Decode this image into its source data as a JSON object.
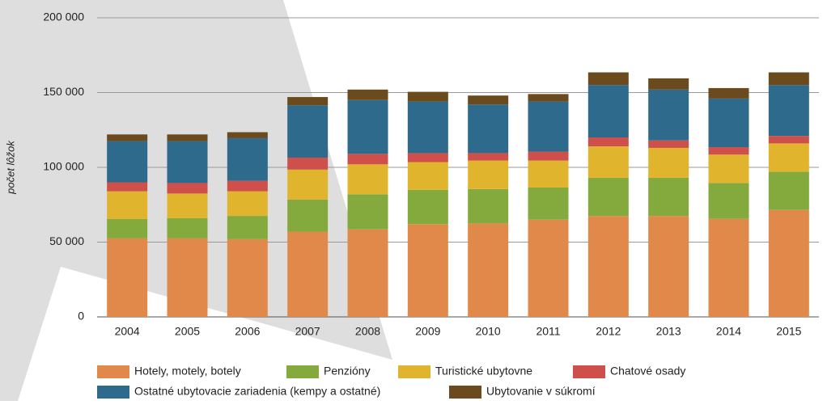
{
  "chart_data": {
    "type": "stacked_bar",
    "ylabel": "počet lôžok",
    "categories": [
      "2004",
      "2005",
      "2006",
      "2007",
      "2008",
      "2009",
      "2010",
      "2011",
      "2012",
      "2013",
      "2014",
      "2015"
    ],
    "series": [
      {
        "name": "Hotely, motely, botely",
        "color": "#e0894a",
        "values": [
          52500,
          52500,
          52000,
          57000,
          58500,
          62000,
          62500,
          65000,
          67500,
          67500,
          65500,
          71500
        ]
      },
      {
        "name": "Penzióny",
        "color": "#84aa3e",
        "values": [
          13000,
          13500,
          15500,
          21500,
          23500,
          23000,
          23000,
          21500,
          25500,
          25500,
          24000,
          25500
        ]
      },
      {
        "name": "Turistické ubytovne",
        "color": "#e1b42e",
        "values": [
          18500,
          16500,
          16500,
          20000,
          20000,
          18500,
          19000,
          18000,
          21000,
          20000,
          19000,
          19000
        ]
      },
      {
        "name": "Chatové osady",
        "color": "#cf4f4a",
        "values": [
          6000,
          7000,
          7000,
          8000,
          7000,
          6000,
          5000,
          6000,
          6000,
          5000,
          5000,
          5000
        ]
      },
      {
        "name": "Ostatné ubytovacie zariadenia (kempy a ostatné)",
        "color": "#2d6a8c",
        "values": [
          27500,
          28000,
          28500,
          35000,
          36000,
          34500,
          32500,
          33500,
          35000,
          34000,
          32500,
          34000
        ]
      },
      {
        "name": "Ubytovanie v súkromí",
        "color": "#6b4a1e",
        "values": [
          4500,
          4500,
          4000,
          5500,
          7000,
          6500,
          6000,
          5000,
          8500,
          7500,
          7000,
          8500
        ]
      }
    ],
    "ylim": [
      0,
      200000
    ],
    "yticks": [
      0,
      {
        "value": 50000,
        "label": "50 000"
      },
      {
        "value": 100000,
        "label": "100 000"
      },
      {
        "value": 150000,
        "label": "150 000"
      },
      {
        "value": 200000,
        "label": "200 000"
      }
    ],
    "grid": true
  }
}
